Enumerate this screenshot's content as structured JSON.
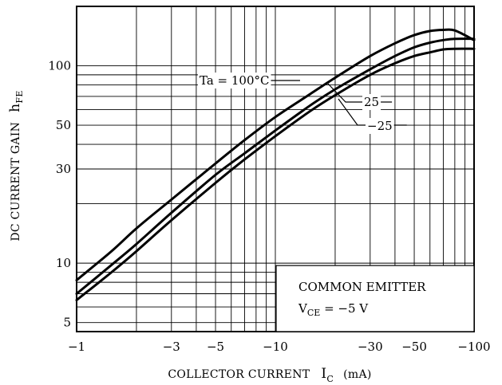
{
  "chart_data": {
    "type": "line",
    "title": "",
    "xlabel": {
      "text": "COLLECTOR CURRENT",
      "symbol": "I",
      "symbol_sub": "C",
      "unit": "(mA)"
    },
    "ylabel": {
      "text": "DC CURRENT GAIN",
      "symbol": "h",
      "symbol_sub": "FE"
    },
    "x_scale": "log",
    "y_scale": "log",
    "x_direction": "negative (magnitude increases to the right)",
    "xlim": [
      -1,
      -100
    ],
    "ylim": [
      4.5,
      200
    ],
    "x_ticks": [
      {
        "value": -1,
        "label": "−1"
      },
      {
        "value": -3,
        "label": "−3"
      },
      {
        "value": -5,
        "label": "−5"
      },
      {
        "value": -10,
        "label": "−10"
      },
      {
        "value": -30,
        "label": "−30"
      },
      {
        "value": -50,
        "label": "−50"
      },
      {
        "value": -100,
        "label": "−100"
      }
    ],
    "y_ticks": [
      {
        "value": 5,
        "label": "5"
      },
      {
        "value": 10,
        "label": "10"
      },
      {
        "value": 30,
        "label": "30"
      },
      {
        "value": 50,
        "label": "50"
      },
      {
        "value": 100,
        "label": "100"
      }
    ],
    "grid": true,
    "series": [
      {
        "name": "Ta = 100°C",
        "x": [
          -1,
          -1.5,
          -2,
          -3,
          -5,
          -7,
          -10,
          -15,
          -20,
          -30,
          -40,
          -50,
          -60,
          -70,
          -80,
          -100
        ],
        "y": [
          8.2,
          11.5,
          15,
          21,
          32,
          42,
          55,
          72,
          87,
          112,
          130,
          143,
          150,
          152,
          151,
          135
        ]
      },
      {
        "name": "25",
        "x": [
          -1,
          -1.5,
          -2,
          -3,
          -5,
          -7,
          -10,
          -15,
          -20,
          -30,
          -40,
          -50,
          -60,
          -70,
          -80,
          -100
        ],
        "y": [
          7.0,
          9.8,
          12.5,
          18,
          28,
          36,
          47,
          63,
          76,
          96,
          112,
          124,
          131,
          135,
          137,
          137
        ]
      },
      {
        "name": "−25",
        "x": [
          -1,
          -1.5,
          -2,
          -3,
          -5,
          -7,
          -10,
          -15,
          -20,
          -30,
          -40,
          -50,
          -60,
          -70,
          -80,
          -100
        ],
        "y": [
          6.5,
          9.0,
          11.5,
          16.5,
          25.5,
          33.5,
          44,
          59,
          71,
          90,
          103,
          112,
          117,
          121,
          122,
          122
        ]
      }
    ],
    "annotations": [
      {
        "text": "Ta = 100°C",
        "series": "Ta = 100°C"
      },
      {
        "text": "25",
        "series": "25"
      },
      {
        "text": "−25",
        "series": "−25"
      }
    ],
    "conditions_box": {
      "line1": "COMMON  EMITTER",
      "line2_symbol": "V",
      "line2_sub": "CE",
      "line2_value": " = −5 V"
    }
  }
}
